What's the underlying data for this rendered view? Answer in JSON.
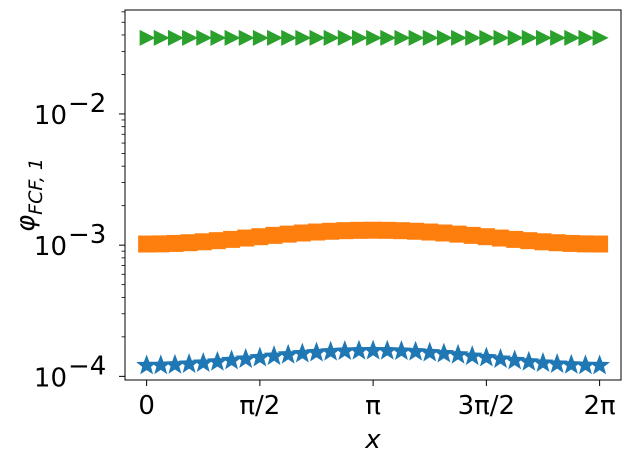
{
  "chart_data": {
    "type": "scatter",
    "xlabel": "x",
    "ylabel_main": "φ",
    "ylabel_sub": "FCF, 1",
    "yscale": "log",
    "xlim": [
      -0.3,
      6.58
    ],
    "ylim": [
      9.38e-05,
      0.062
    ],
    "x_ticks": [
      {
        "value": 0,
        "label": "0"
      },
      {
        "value": 1.5708,
        "label": "π/2"
      },
      {
        "value": 3.1416,
        "label": "π"
      },
      {
        "value": 4.7124,
        "label": "3π/2"
      },
      {
        "value": 6.2832,
        "label": "2π"
      }
    ],
    "y_ticks": [
      {
        "value": 0.0001,
        "base": "10",
        "exp": "−4"
      },
      {
        "value": 0.001,
        "base": "10",
        "exp": "−3"
      },
      {
        "value": 0.01,
        "base": "10",
        "exp": "−2"
      }
    ],
    "grid": false,
    "n_points": 33,
    "series": [
      {
        "marker": "star",
        "color": "#1f77b4",
        "base": 0.000139,
        "amp": 1.8e-05
      },
      {
        "marker": "square",
        "color": "#ff7f0e",
        "base": 0.00116,
        "amp": 0.00014
      },
      {
        "marker": "triangle-right",
        "color": "#2ca02c",
        "base": 0.038,
        "amp": 0.0
      }
    ]
  }
}
